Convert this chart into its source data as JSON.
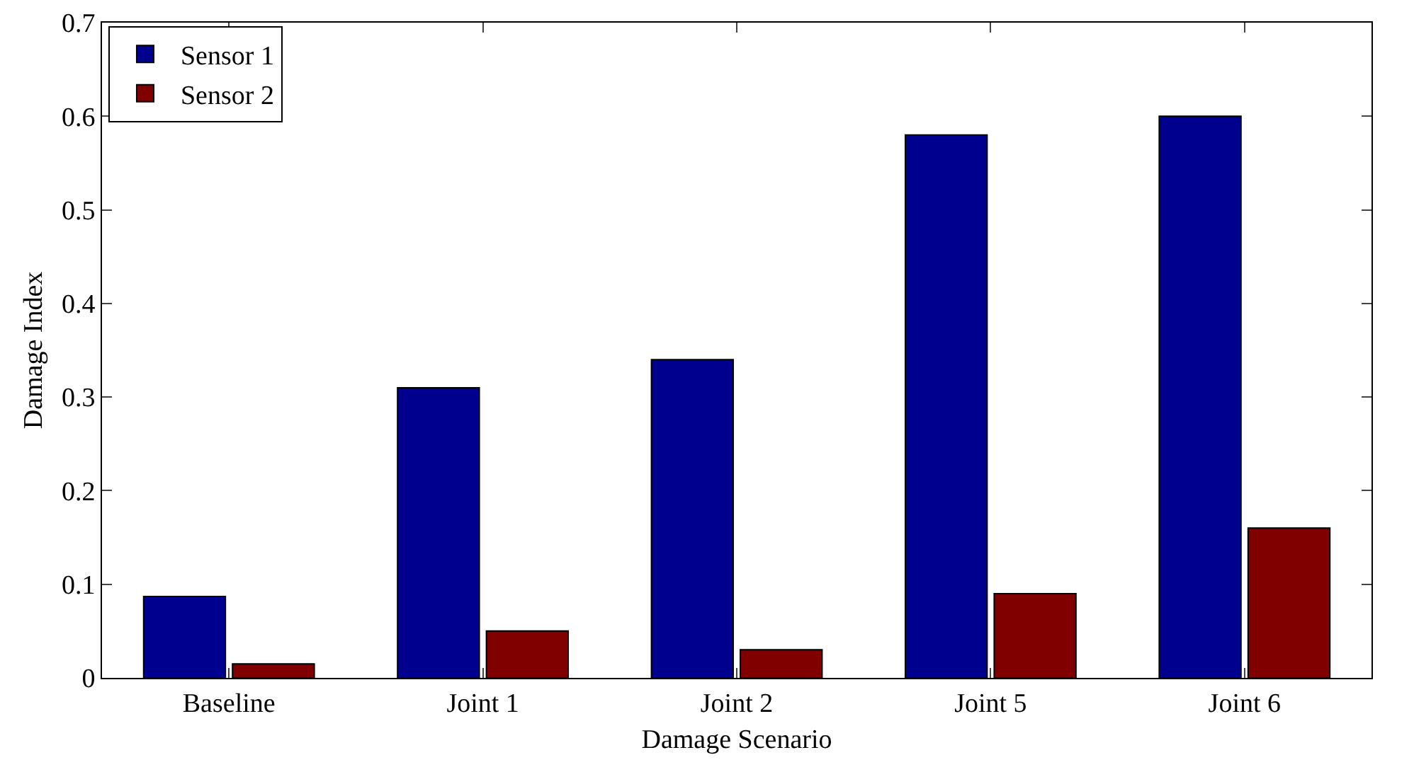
{
  "chart_data": {
    "type": "bar",
    "xlabel": "Damage Scenario",
    "ylabel": "Damage Index",
    "categories": [
      "Baseline",
      "Joint 1",
      "Joint 2",
      "Joint 5",
      "Joint 6"
    ],
    "series": [
      {
        "name": "Sensor 1",
        "color": "#00008f",
        "values": [
          0.087,
          0.31,
          0.34,
          0.58,
          0.6
        ]
      },
      {
        "name": "Sensor 2",
        "color": "#800000",
        "values": [
          0.015,
          0.05,
          0.03,
          0.09,
          0.16
        ]
      }
    ],
    "ylim": [
      0,
      0.7
    ],
    "yticks": [
      0,
      0.1,
      0.2,
      0.3,
      0.4,
      0.5,
      0.6,
      0.7
    ],
    "grid": false,
    "legend": "top left"
  }
}
